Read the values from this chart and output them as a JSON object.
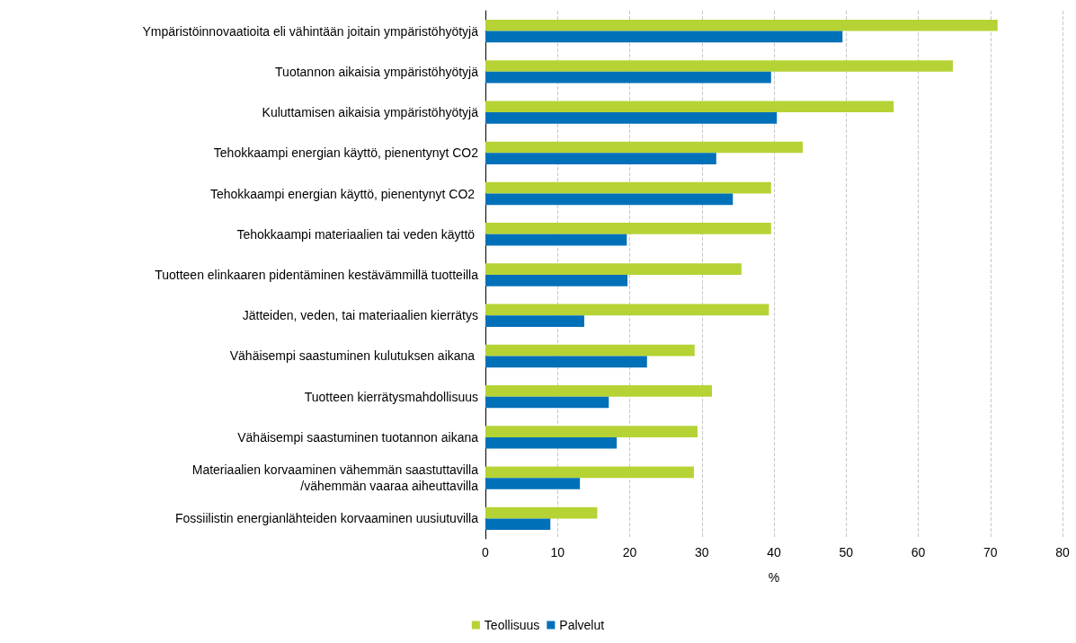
{
  "chart_data": {
    "type": "bar",
    "orientation": "horizontal",
    "xlabel": "%",
    "categories": [
      "Ympäristöinnovaatioita eli vähintään joitain ympäristöhyötyjä",
      "Tuotannon aikaisia ympäristöhyötyjä",
      "Kuluttamisen aikaisia ympäristöhyötyjä",
      "Tehokkaampi energian käyttö, pienentynyt CO2",
      "Tehokkaampi energian käyttö, pienentynyt CO2 ",
      "Tehokkaampi materiaalien tai veden käyttö ",
      "Tuotteen elinkaaren pidentäminen kestävämmillä tuotteilla",
      "Jätteiden, veden, tai materiaalien kierrätys",
      "Vähäisempi saastuminen kulutuksen aikana ",
      "Tuotteen kierrätysmahdollisuus",
      "Vähäisempi saastuminen tuotannon aikana",
      "Materiaalien korvaaminen vähemmän saastuttavilla\n/vähemmän vaaraa aiheuttavilla",
      "Fossiilistin energianlähteiden korvaaminen uusiutuvilla"
    ],
    "series": [
      {
        "name": "Teollisuus",
        "color": "#b5d334",
        "values": [
          71.0,
          64.8,
          56.6,
          44.0,
          39.6,
          39.6,
          35.5,
          39.3,
          29.0,
          31.4,
          29.4,
          28.9,
          15.5
        ]
      },
      {
        "name": "Palvelut",
        "color": "#0070b8",
        "values": [
          49.5,
          39.6,
          40.4,
          32.0,
          34.3,
          19.6,
          19.7,
          13.7,
          22.4,
          17.1,
          18.2,
          13.1,
          9.0
        ]
      }
    ],
    "xlim": [
      0,
      80
    ],
    "xticks": [
      0,
      10,
      20,
      30,
      40,
      50,
      60,
      70,
      80
    ],
    "grid": "x",
    "legend": "bottom"
  }
}
